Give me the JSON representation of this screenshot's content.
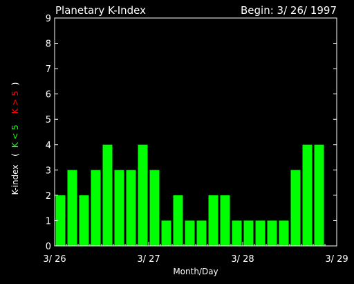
{
  "chart_data": {
    "type": "bar",
    "title": "Planetary K-Index",
    "subtitle": "Begin: 3/ 26/ 1997",
    "xlabel": "Month/Day",
    "ylabel_parts": [
      "K-index",
      "(",
      "K < 5",
      "K > 5",
      ")"
    ],
    "y_ticks": [
      "0",
      "1",
      "2",
      "3",
      "4",
      "5",
      "6",
      "7",
      "8",
      "9"
    ],
    "ylim": [
      0,
      9
    ],
    "x_ticks": [
      "3/ 26",
      "3/ 27",
      "3/ 28",
      "3/ 29"
    ],
    "values": [
      2,
      3,
      2,
      3,
      4,
      3,
      3,
      4,
      3,
      1,
      2,
      1,
      1,
      2,
      2,
      1,
      1,
      1,
      1,
      1,
      3,
      4,
      4
    ],
    "grid": false,
    "colors": {
      "below_5": "#00ff00",
      "above_5": "#ff0000",
      "axes": "#ffffff",
      "background": "#000000"
    }
  }
}
